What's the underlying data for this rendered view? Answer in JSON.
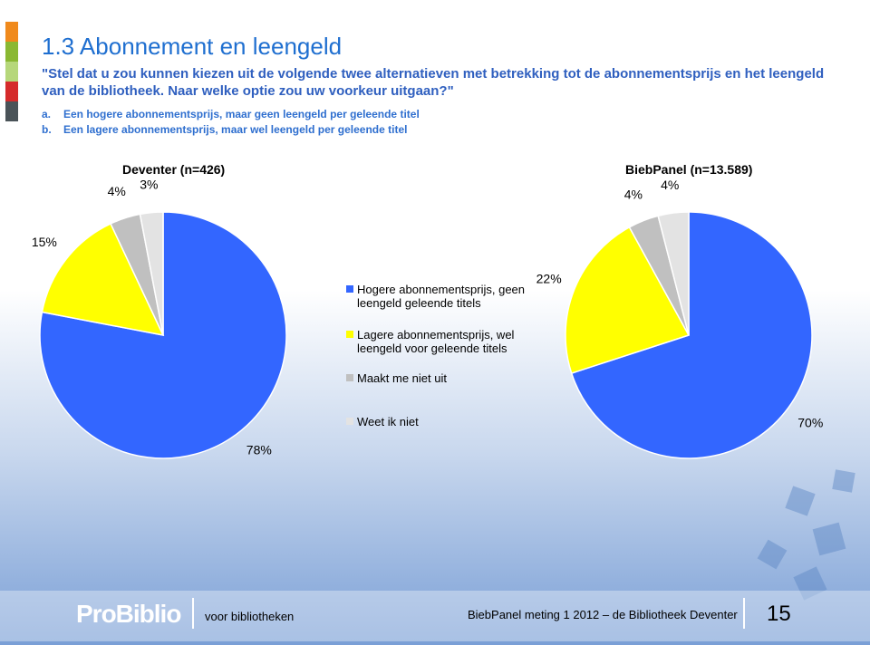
{
  "header": {
    "title": "1.3 Abonnement en leengeld",
    "question": "\"Stel dat u zou kunnen kiezen uit de volgende twee alternatieven met betrekking tot de abonnementsprijs en het leengeld van de bibliotheek. Naar welke optie zou uw voorkeur uitgaan?\"",
    "options": [
      {
        "marker": "a.",
        "text": "Een hogere abonnementsprijs, maar geen leengeld per geleende titel"
      },
      {
        "marker": "b.",
        "text": "Een lagere abonnementsprijs, maar wel leengeld per geleende titel"
      }
    ]
  },
  "legend": {
    "labels": [
      "Hogere abonnementsprijs, geen leengeld geleende titels",
      "Lagere abonnementsprijs, wel leengeld voor geleende titels",
      "Maakt me niet uit",
      "Weet ik niet"
    ],
    "colors": [
      "#3366ff",
      "#ffff00",
      "#c0c0c0",
      "#e3e3e3"
    ]
  },
  "chart_data": [
    {
      "type": "pie",
      "title": "Deventer (n=426)",
      "values": [
        78,
        15,
        4,
        3
      ],
      "value_labels": [
        "78%",
        "15%",
        "4%",
        "3%"
      ]
    },
    {
      "type": "pie",
      "title": "BiebPanel (n=13.589)",
      "values": [
        70,
        22,
        4,
        4
      ],
      "value_labels": [
        "70%",
        "22%",
        "4%",
        "4%"
      ]
    }
  ],
  "footer": {
    "logo": "ProBiblio",
    "tagline": "voor bibliotheken",
    "meeting": "BiebPanel meting 1 2012 – de Bibliotheek Deventer",
    "page": "15"
  }
}
